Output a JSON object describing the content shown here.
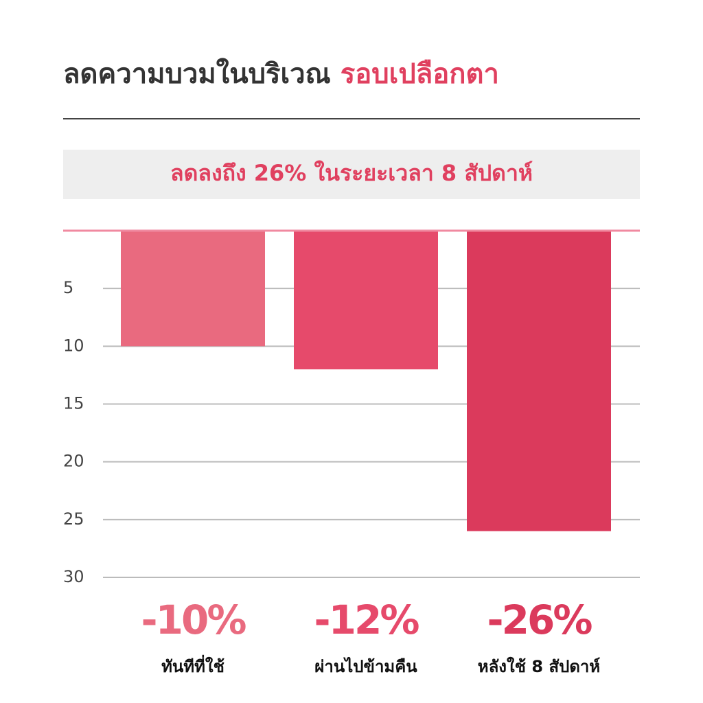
{
  "chart_data": {
    "type": "bar",
    "title": "ลดความบวมในบริเวณ",
    "title_highlight": "รอบเปลือกตา",
    "subtitle": "ลดลงถึง 26% ในระยะเวลา 8 สัปดาห์",
    "categories": [
      "ทันทีที่ใช้",
      "ผ่านไปข้ามคืน",
      "หลังใช้ 8 สัปดาห์"
    ],
    "values": [
      10,
      12,
      26
    ],
    "value_labels": [
      "-10%",
      "-12%",
      "-26%"
    ],
    "colors": [
      "#e96a7f",
      "#e64a6b",
      "#db3a5c"
    ],
    "ylim": [
      0,
      30
    ],
    "yticks": [
      5,
      10,
      15,
      20,
      25,
      30
    ],
    "grid": true
  }
}
